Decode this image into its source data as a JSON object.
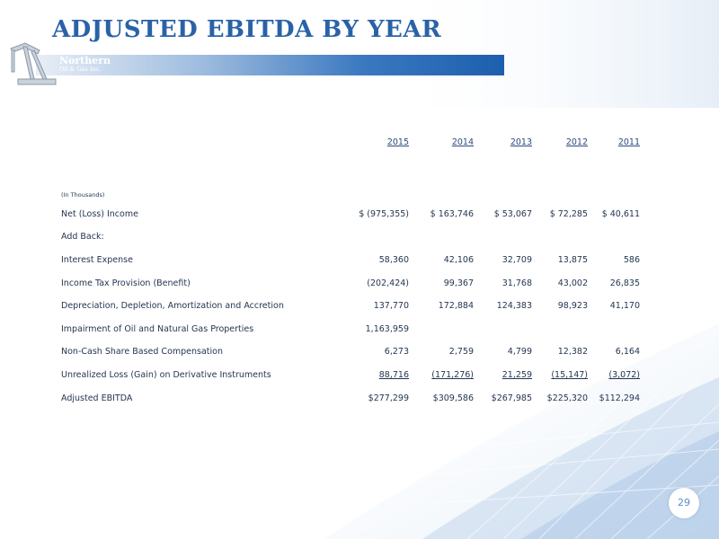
{
  "slide": {
    "title": "ADJUSTED EBITDA BY YEAR",
    "page_number": "29"
  },
  "logo": {
    "name": "Northern",
    "sub": "Oil & Gas Inc."
  },
  "table": {
    "years": [
      "2015",
      "2014",
      "2013",
      "2012",
      "2011"
    ],
    "units_label": "(In Thousands)",
    "rows": [
      {
        "label": "Net (Loss) Income",
        "values": [
          "$ (975,355)",
          "$  163,746",
          "$  53,067",
          "$  72,285",
          "$  40,611"
        ]
      },
      {
        "label": "Add Back:",
        "values": [
          "",
          "",
          "",
          "",
          ""
        ]
      },
      {
        "label": "Interest Expense",
        "values": [
          "58,360",
          "42,106",
          "32,709",
          "13,875",
          "586"
        ]
      },
      {
        "label": "Income Tax Provision (Benefit)",
        "values": [
          "(202,424)",
          "99,367",
          "31,768",
          "43,002",
          "26,835"
        ]
      },
      {
        "label": "Depreciation, Depletion, Amortization and Accretion",
        "values": [
          "137,770",
          "172,884",
          "124,383",
          "98,923",
          "41,170"
        ]
      },
      {
        "label": "Impairment of Oil and Natural Gas Properties",
        "values": [
          "1,163,959",
          "",
          "",
          "",
          ""
        ]
      },
      {
        "label": "Non-Cash Share Based Compensation",
        "values": [
          "6,273",
          "2,759",
          "4,799",
          "12,382",
          "6,164"
        ]
      },
      {
        "label": "Unrealized Loss (Gain) on Derivative Instruments",
        "values": [
          "88,716",
          "(171,276)",
          "21,259",
          "(15,147)",
          "(3,072)"
        ]
      },
      {
        "label": "Adjusted EBITDA",
        "values": [
          "$277,299",
          "$309,586",
          "$267,985",
          "$225,320",
          "$112,294"
        ]
      }
    ]
  },
  "colors": {
    "title": "#2a62a8",
    "text": "#243650",
    "band": "#1d5fae"
  }
}
